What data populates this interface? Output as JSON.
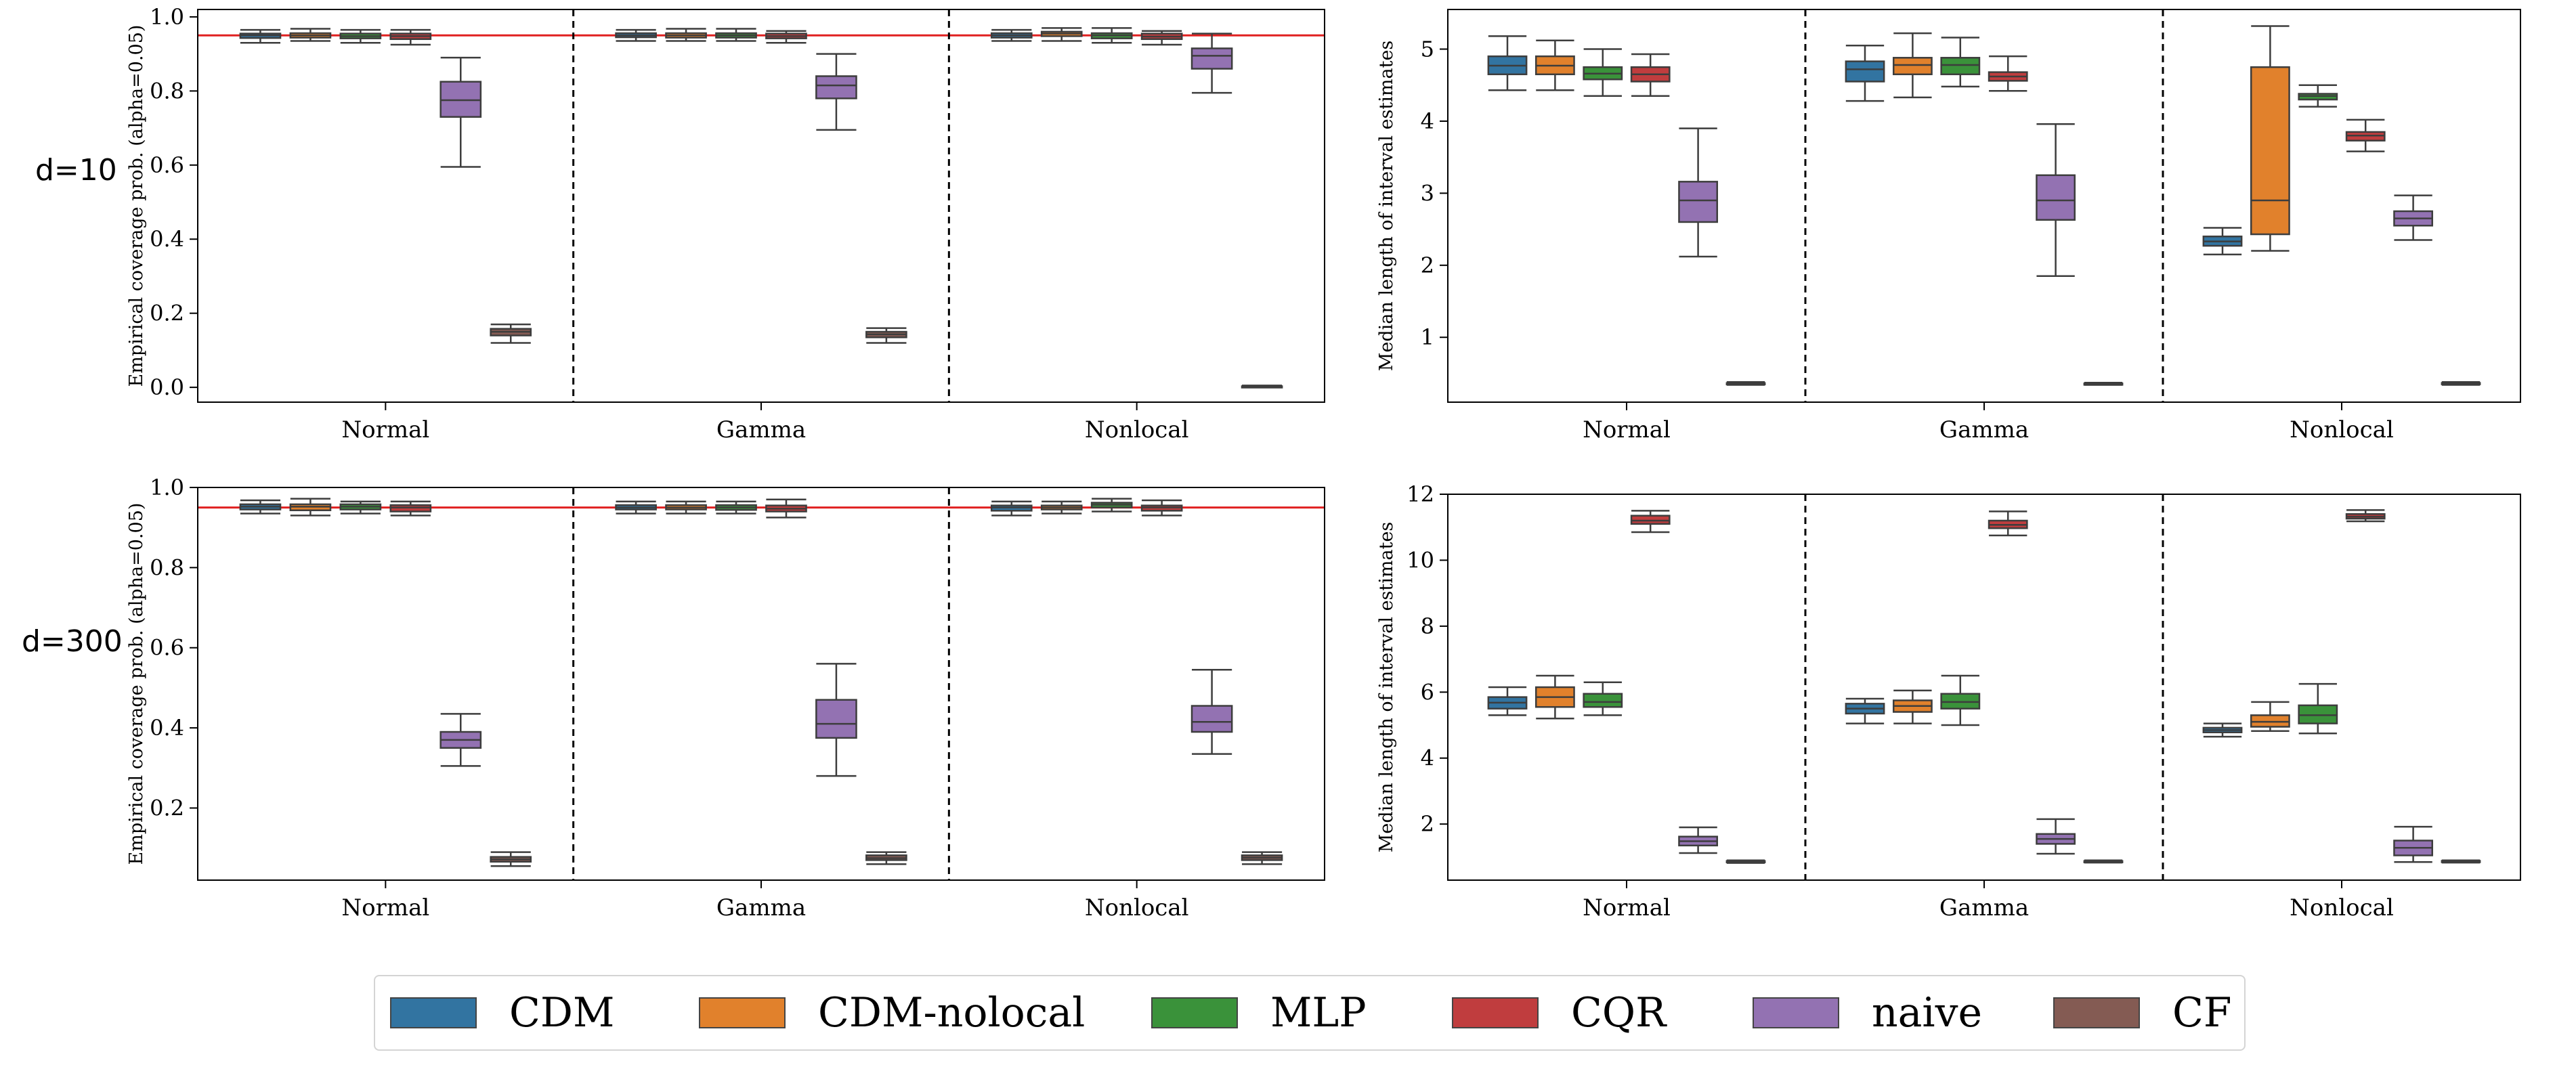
{
  "row_labels": [
    "d=10",
    "d=300"
  ],
  "legend": {
    "items": [
      {
        "label": "CDM",
        "color": "#3274a1"
      },
      {
        "label": "CDM-nolocal",
        "color": "#e1812c"
      },
      {
        "label": "MLP",
        "color": "#3a923a"
      },
      {
        "label": "CQR",
        "color": "#c03d3e"
      },
      {
        "label": "naive",
        "color": "#9372b2"
      },
      {
        "label": "CF",
        "color": "#845b53"
      }
    ]
  },
  "chart_data": [
    {
      "type": "box",
      "row": "d=10",
      "ylabel": "Empirical coverage prob. (alpha=0.05)",
      "ylim": [
        -0.04,
        1.02
      ],
      "yticks": [
        0.0,
        0.2,
        0.4,
        0.6,
        0.8,
        1.0
      ],
      "ytick_labels": [
        "0.0",
        "0.2",
        "0.4",
        "0.6",
        "0.8",
        "1.0"
      ],
      "reference_line": 0.95,
      "groups": [
        "Normal",
        "Gamma",
        "Nonlocal"
      ],
      "series": [
        {
          "name": "CDM",
          "boxes": [
            [
              0.93,
              0.943,
              0.95,
              0.955,
              0.965
            ],
            [
              0.935,
              0.945,
              0.95,
              0.956,
              0.965
            ],
            [
              0.935,
              0.944,
              0.95,
              0.956,
              0.965
            ]
          ]
        },
        {
          "name": "CDM-nolocal",
          "boxes": [
            [
              0.935,
              0.944,
              0.95,
              0.956,
              0.968
            ],
            [
              0.935,
              0.944,
              0.95,
              0.956,
              0.968
            ],
            [
              0.935,
              0.948,
              0.955,
              0.96,
              0.97
            ]
          ]
        },
        {
          "name": "MLP",
          "boxes": [
            [
              0.93,
              0.942,
              0.948,
              0.955,
              0.965
            ],
            [
              0.935,
              0.944,
              0.95,
              0.956,
              0.968
            ],
            [
              0.93,
              0.942,
              0.95,
              0.956,
              0.97
            ]
          ]
        },
        {
          "name": "CQR",
          "boxes": [
            [
              0.925,
              0.94,
              0.948,
              0.955,
              0.965
            ],
            [
              0.93,
              0.942,
              0.948,
              0.955,
              0.962
            ],
            [
              0.925,
              0.94,
              0.947,
              0.955,
              0.962
            ]
          ]
        },
        {
          "name": "naive",
          "boxes": [
            [
              0.595,
              0.73,
              0.775,
              0.825,
              0.89
            ],
            [
              0.695,
              0.78,
              0.815,
              0.84,
              0.9
            ],
            [
              0.795,
              0.86,
              0.895,
              0.915,
              0.955
            ]
          ]
        },
        {
          "name": "CF",
          "boxes": [
            [
              0.12,
              0.14,
              0.15,
              0.158,
              0.17
            ],
            [
              0.12,
              0.135,
              0.143,
              0.15,
              0.16
            ],
            [
              0.0,
              0.001,
              0.002,
              0.003,
              0.005
            ]
          ]
        }
      ]
    },
    {
      "type": "box",
      "row": "d=10",
      "ylabel": "Median length of interval estimates",
      "ylim": [
        0.1,
        5.55
      ],
      "yticks": [
        1,
        2,
        3,
        4,
        5
      ],
      "ytick_labels": [
        "1",
        "2",
        "3",
        "4",
        "5"
      ],
      "groups": [
        "Normal",
        "Gamma",
        "Nonlocal"
      ],
      "series": [
        {
          "name": "CDM",
          "boxes": [
            [
              4.43,
              4.65,
              4.77,
              4.9,
              5.18
            ],
            [
              4.28,
              4.55,
              4.72,
              4.83,
              5.05
            ],
            [
              2.15,
              2.27,
              2.33,
              2.4,
              2.52
            ]
          ]
        },
        {
          "name": "CDM-nolocal",
          "boxes": [
            [
              4.43,
              4.65,
              4.77,
              4.9,
              5.12
            ],
            [
              4.33,
              4.65,
              4.78,
              4.88,
              5.22
            ],
            [
              2.2,
              2.43,
              2.9,
              4.75,
              5.32
            ]
          ]
        },
        {
          "name": "MLP",
          "boxes": [
            [
              4.35,
              4.58,
              4.66,
              4.75,
              5.0
            ],
            [
              4.48,
              4.65,
              4.78,
              4.88,
              5.16
            ],
            [
              4.2,
              4.3,
              4.35,
              4.38,
              4.5
            ]
          ]
        },
        {
          "name": "CQR",
          "boxes": [
            [
              4.35,
              4.55,
              4.65,
              4.75,
              4.93
            ],
            [
              4.42,
              4.56,
              4.62,
              4.68,
              4.9
            ],
            [
              3.58,
              3.73,
              3.8,
              3.85,
              4.02
            ]
          ]
        },
        {
          "name": "naive",
          "boxes": [
            [
              2.12,
              2.6,
              2.9,
              3.16,
              3.9
            ],
            [
              1.85,
              2.63,
              2.9,
              3.25,
              3.96
            ],
            [
              2.35,
              2.55,
              2.65,
              2.75,
              2.97
            ]
          ]
        },
        {
          "name": "CF",
          "boxes": [
            [
              0.34,
              0.355,
              0.36,
              0.365,
              0.38
            ],
            [
              0.34,
              0.35,
              0.355,
              0.36,
              0.37
            ],
            [
              0.34,
              0.355,
              0.36,
              0.367,
              0.38
            ]
          ]
        }
      ]
    },
    {
      "type": "box",
      "row": "d=300",
      "ylabel": "Empirical coverage prob. (alpha=0.05)",
      "ylim": [
        0.02,
        1.0
      ],
      "yticks": [
        0.2,
        0.4,
        0.6,
        0.8,
        1.0
      ],
      "ytick_labels": [
        "0.2",
        "0.4",
        "0.6",
        "0.8",
        "1.0"
      ],
      "reference_line": 0.95,
      "groups": [
        "Normal",
        "Gamma",
        "Nonlocal"
      ],
      "series": [
        {
          "name": "CDM",
          "boxes": [
            [
              0.935,
              0.945,
              0.952,
              0.958,
              0.968
            ],
            [
              0.935,
              0.945,
              0.95,
              0.956,
              0.965
            ],
            [
              0.93,
              0.942,
              0.95,
              0.955,
              0.965
            ]
          ]
        },
        {
          "name": "CDM-nolocal",
          "boxes": [
            [
              0.93,
              0.943,
              0.952,
              0.958,
              0.972
            ],
            [
              0.935,
              0.945,
              0.95,
              0.956,
              0.965
            ],
            [
              0.935,
              0.945,
              0.95,
              0.955,
              0.965
            ]
          ]
        },
        {
          "name": "MLP",
          "boxes": [
            [
              0.935,
              0.945,
              0.952,
              0.958,
              0.965
            ],
            [
              0.935,
              0.944,
              0.95,
              0.956,
              0.965
            ],
            [
              0.94,
              0.95,
              0.957,
              0.962,
              0.972
            ]
          ]
        },
        {
          "name": "CQR",
          "boxes": [
            [
              0.93,
              0.94,
              0.95,
              0.956,
              0.965
            ],
            [
              0.925,
              0.94,
              0.947,
              0.955,
              0.97
            ],
            [
              0.93,
              0.942,
              0.95,
              0.955,
              0.968
            ]
          ]
        },
        {
          "name": "naive",
          "boxes": [
            [
              0.305,
              0.35,
              0.37,
              0.39,
              0.435
            ],
            [
              0.28,
              0.375,
              0.41,
              0.47,
              0.56
            ],
            [
              0.335,
              0.39,
              0.415,
              0.455,
              0.545
            ]
          ]
        },
        {
          "name": "CF",
          "boxes": [
            [
              0.055,
              0.066,
              0.072,
              0.078,
              0.09
            ],
            [
              0.06,
              0.07,
              0.075,
              0.082,
              0.09
            ],
            [
              0.06,
              0.07,
              0.076,
              0.082,
              0.09
            ]
          ]
        }
      ]
    },
    {
      "type": "box",
      "row": "d=300",
      "ylabel": "Median length of interval estimates",
      "ylim": [
        0.3,
        12.0
      ],
      "yticks": [
        2,
        4,
        6,
        8,
        10,
        12
      ],
      "ytick_labels": [
        "2",
        "4",
        "6",
        "8",
        "10",
        "12"
      ],
      "groups": [
        "Normal",
        "Gamma",
        "Nonlocal"
      ],
      "series": [
        {
          "name": "CDM",
          "boxes": [
            [
              5.3,
              5.5,
              5.68,
              5.85,
              6.15
            ],
            [
              5.05,
              5.35,
              5.5,
              5.65,
              5.8
            ],
            [
              4.65,
              4.78,
              4.85,
              4.92,
              5.05
            ]
          ]
        },
        {
          "name": "CDM-nolocal",
          "boxes": [
            [
              5.2,
              5.55,
              5.85,
              6.15,
              6.5
            ],
            [
              5.05,
              5.4,
              5.58,
              5.75,
              6.05
            ],
            [
              4.82,
              4.95,
              5.1,
              5.3,
              5.7
            ]
          ]
        },
        {
          "name": "MLP",
          "boxes": [
            [
              5.3,
              5.55,
              5.7,
              5.95,
              6.3
            ],
            [
              5.0,
              5.5,
              5.7,
              5.95,
              6.5
            ],
            [
              4.75,
              5.05,
              5.3,
              5.6,
              6.25
            ]
          ]
        },
        {
          "name": "CQR",
          "boxes": [
            [
              10.85,
              11.1,
              11.2,
              11.35,
              11.5
            ],
            [
              10.75,
              10.97,
              11.07,
              11.2,
              11.48
            ],
            [
              11.18,
              11.26,
              11.32,
              11.4,
              11.52
            ]
          ]
        },
        {
          "name": "naive",
          "boxes": [
            [
              1.12,
              1.35,
              1.48,
              1.62,
              1.9
            ],
            [
              1.1,
              1.4,
              1.55,
              1.7,
              2.15
            ],
            [
              0.85,
              1.05,
              1.28,
              1.5,
              1.92
            ]
          ]
        },
        {
          "name": "CF",
          "boxes": [
            [
              0.82,
              0.85,
              0.87,
              0.88,
              0.9
            ],
            [
              0.83,
              0.85,
              0.87,
              0.88,
              0.9
            ],
            [
              0.83,
              0.85,
              0.87,
              0.885,
              0.9
            ]
          ]
        }
      ]
    }
  ]
}
